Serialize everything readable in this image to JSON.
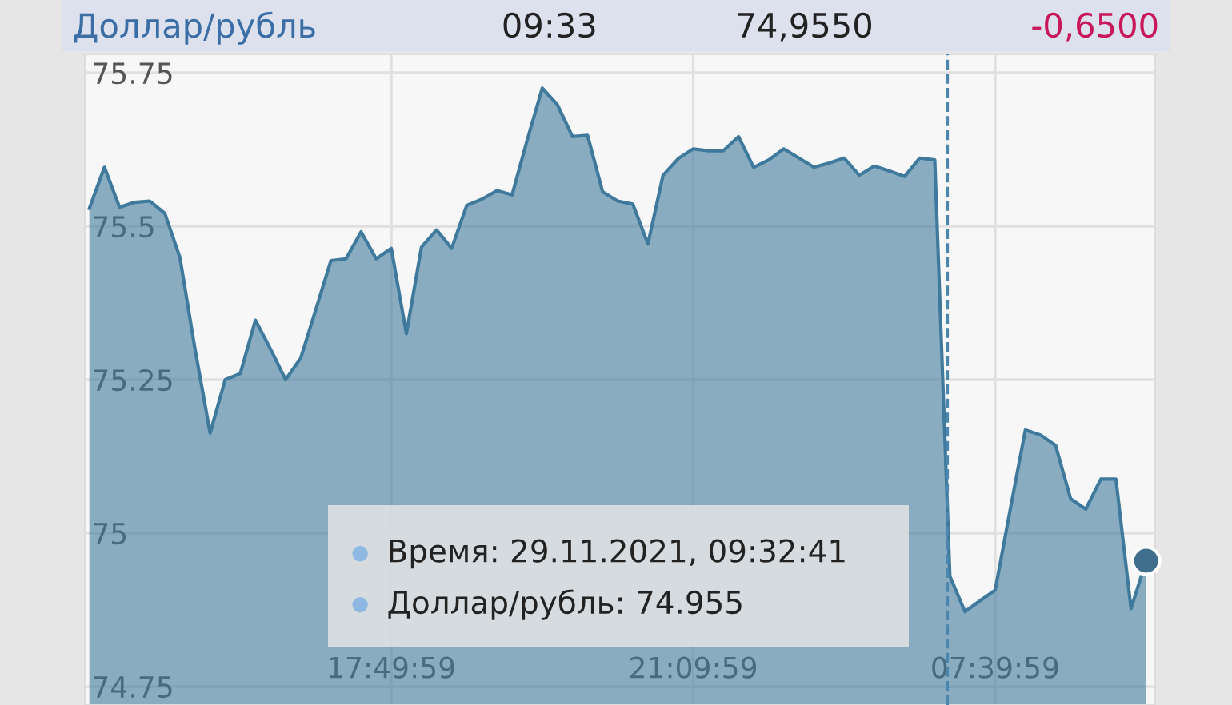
{
  "chart_data": {
    "type": "area",
    "title": "Доллар/рубль",
    "categories": [
      null,
      null,
      null,
      null,
      null,
      null,
      null,
      null,
      null,
      null,
      null,
      null,
      null,
      null,
      null,
      null,
      null,
      null,
      null,
      null,
      "17:49:59",
      null,
      null,
      null,
      null,
      null,
      null,
      null,
      null,
      null,
      null,
      null,
      null,
      null,
      null,
      null,
      null,
      null,
      null,
      null,
      "21:09:59",
      null,
      null,
      null,
      null,
      null,
      null,
      null,
      null,
      null,
      null,
      null,
      null,
      null,
      null,
      null,
      null,
      null,
      null,
      null,
      "07:39:59",
      null,
      null,
      null,
      null,
      null,
      null,
      null,
      null,
      null,
      null
    ],
    "series": [
      {
        "color": "#3f7a9c",
        "values": [
          75.529,
          75.596,
          75.531,
          75.539,
          75.541,
          75.521,
          75.449,
          75.3,
          75.163,
          75.25,
          75.26,
          75.347,
          75.3,
          75.25,
          75.285,
          75.364,
          75.444,
          75.447,
          75.491,
          75.447,
          75.464,
          75.325,
          75.466,
          75.494,
          75.464,
          75.534,
          75.544,
          75.558,
          75.551,
          75.64,
          75.725,
          75.698,
          75.646,
          75.648,
          75.556,
          75.541,
          75.536,
          75.471,
          75.583,
          75.61,
          75.626,
          75.623,
          75.623,
          75.646,
          75.596,
          75.608,
          75.626,
          75.611,
          75.596,
          75.603,
          75.611,
          75.583,
          75.598,
          75.59,
          75.581,
          75.611,
          75.608,
          74.93,
          74.872,
          74.89,
          74.907,
          75.039,
          75.168,
          75.16,
          75.143,
          75.056,
          75.039,
          75.088,
          75.088,
          74.877,
          74.955
        ]
      },
      {
        "type": "scatter",
        "color": "#3f6f8c",
        "values": [
          null,
          null,
          null,
          null,
          null,
          null,
          null,
          null,
          null,
          null,
          null,
          null,
          null,
          null,
          null,
          null,
          null,
          null,
          null,
          null,
          null,
          null,
          null,
          null,
          null,
          null,
          null,
          null,
          null,
          null,
          null,
          null,
          null,
          null,
          null,
          null,
          null,
          null,
          null,
          null,
          null,
          null,
          null,
          null,
          null,
          null,
          null,
          null,
          null,
          null,
          null,
          null,
          null,
          null,
          null,
          null,
          null,
          null,
          null,
          null,
          null,
          null,
          null,
          null,
          null,
          null,
          null,
          null,
          null,
          null,
          74.955
        ]
      }
    ],
    "ylim": [
      74.72,
      75.78
    ],
    "yticks": [
      74.75,
      75,
      75.25,
      75.5,
      75.75
    ],
    "grid": true,
    "annotations": [
      "09:33",
      "74,9550",
      "-0,6500",
      "Время: 29.11.2021, 09:32:41",
      "Доллар/рубль: 74.955"
    ]
  }
}
